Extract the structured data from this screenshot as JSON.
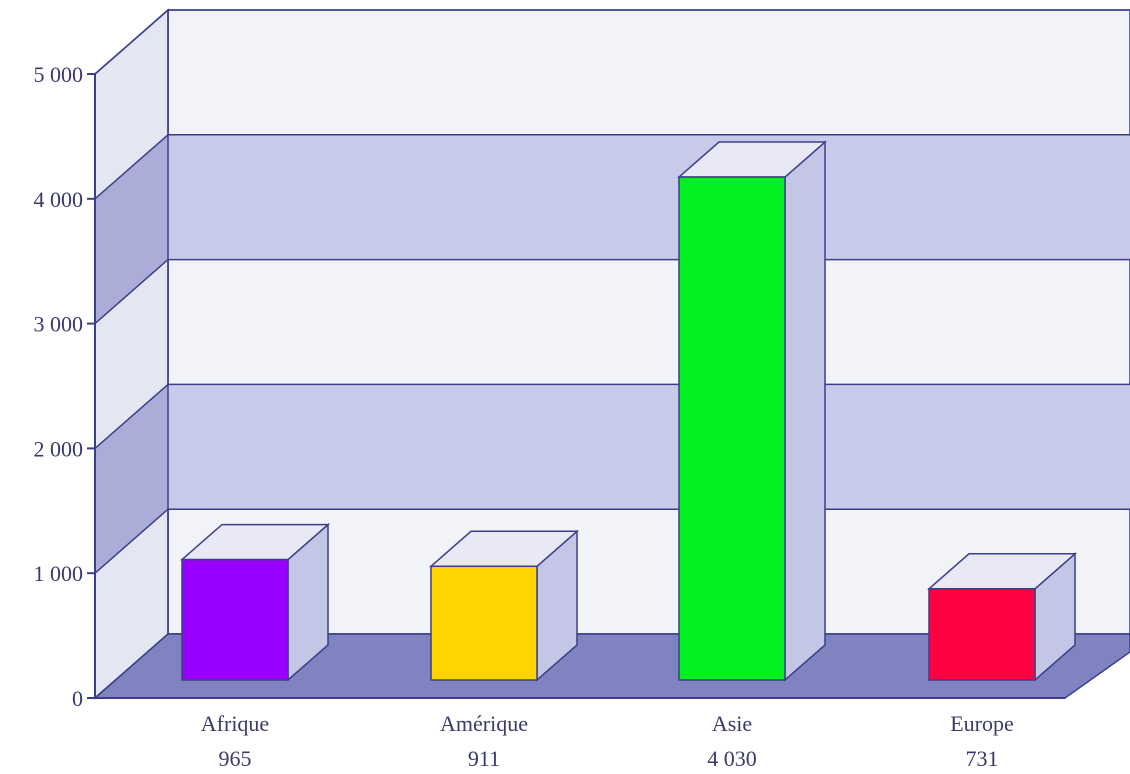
{
  "chart_data": {
    "type": "bar",
    "categories": [
      "Afrique",
      "Amérique",
      "Asie",
      "Europe"
    ],
    "values": [
      965,
      911,
      4030,
      731
    ],
    "value_labels": [
      "965",
      "911",
      "4 030",
      "731"
    ],
    "yticks": [
      0,
      1000,
      2000,
      3000,
      4000,
      5000
    ],
    "ytick_labels": [
      "0",
      "1 000",
      "2 000",
      "3 000",
      "4 000",
      "5 000"
    ],
    "ylim": [
      0,
      5000
    ],
    "grid": true,
    "bar_colors": [
      "#9a00ff",
      "#ffd400",
      "#00f020",
      "#ff0040"
    ],
    "band_color": "#c7cae8",
    "wall_color": "#f2f3f8",
    "floor_color": "#7f84c0",
    "axis_color": "#3b3f8a"
  }
}
